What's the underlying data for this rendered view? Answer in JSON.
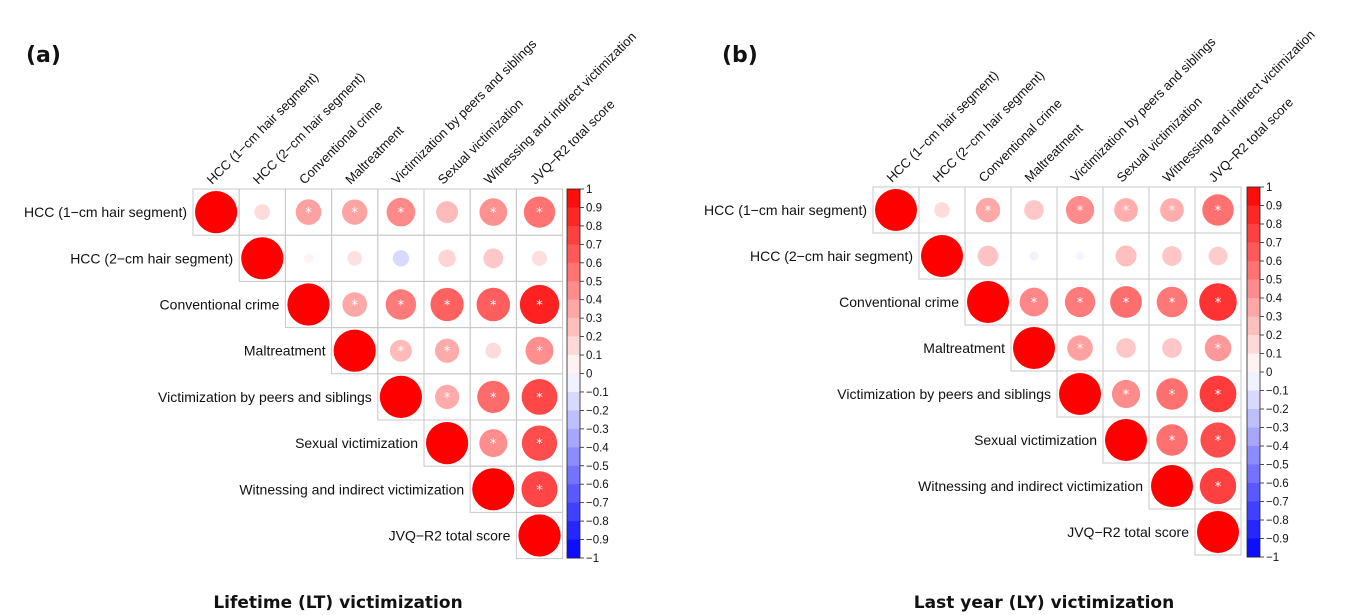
{
  "chart_data": [
    {
      "type": "heatmap",
      "panel_label": "(a)",
      "caption": "Lifetime (LT) victimization",
      "variables": [
        "HCC (1−cm hair segment)",
        "HCC (2−cm hair segment)",
        "Conventional crime",
        "Maltreatment",
        "Victimization by peers and siblings",
        "Sexual victimization",
        "Witnessing and indirect victimization",
        "JVQ−R2 total score"
      ],
      "matrix": [
        [
          1,
          0.14,
          0.37,
          0.36,
          0.46,
          0.27,
          0.43,
          0.55
        ],
        [
          null,
          1,
          0.05,
          0.12,
          -0.15,
          0.17,
          0.22,
          0.13
        ],
        [
          null,
          null,
          1,
          0.34,
          0.52,
          0.62,
          0.63,
          0.87
        ],
        [
          null,
          null,
          null,
          1,
          0.27,
          0.33,
          0.14,
          0.44
        ],
        [
          null,
          null,
          null,
          null,
          1,
          0.33,
          0.58,
          0.72
        ],
        [
          null,
          null,
          null,
          null,
          null,
          1,
          0.44,
          0.7
        ],
        [
          null,
          null,
          null,
          null,
          null,
          null,
          1,
          0.73
        ],
        [
          null,
          null,
          null,
          null,
          null,
          null,
          null,
          1
        ]
      ],
      "significant": [
        [
          false,
          false,
          true,
          true,
          true,
          false,
          true,
          true
        ],
        [
          false,
          false,
          false,
          false,
          false,
          false,
          false,
          false
        ],
        [
          false,
          false,
          false,
          true,
          true,
          true,
          true,
          true
        ],
        [
          false,
          false,
          false,
          false,
          true,
          true,
          false,
          true
        ],
        [
          false,
          false,
          false,
          false,
          false,
          true,
          true,
          true
        ],
        [
          false,
          false,
          false,
          false,
          false,
          false,
          true,
          true
        ],
        [
          false,
          false,
          false,
          false,
          false,
          false,
          false,
          true
        ],
        [
          false,
          false,
          false,
          false,
          false,
          false,
          false,
          false
        ]
      ],
      "marker_text": "*",
      "colorbar": {
        "min": -1,
        "max": 1,
        "ticks": [
          1,
          0.9,
          0.8,
          0.7,
          0.6,
          0.5,
          0.4,
          0.3,
          0.2,
          0.1,
          0,
          -0.1,
          -0.2,
          -0.3,
          -0.4,
          -0.5,
          -0.6,
          -0.7,
          -0.8,
          -0.9,
          -1
        ],
        "tick_labels": [
          "1",
          "0.9",
          "0.8",
          "0.7",
          "0.6",
          "0.5",
          "0.4",
          "0.3",
          "0.2",
          "0.1",
          "0",
          "−0.1",
          "−0.2",
          "−0.3",
          "−0.4",
          "−0.5",
          "−0.6",
          "−0.7",
          "−0.8",
          "−0.9",
          "−1"
        ]
      }
    },
    {
      "type": "heatmap",
      "panel_label": "(b)",
      "caption": "Last year (LY) victimization",
      "variables": [
        "HCC (1−cm hair segment)",
        "HCC (2−cm hair segment)",
        "Conventional crime",
        "Maltreatment",
        "Victimization by peers and siblings",
        "Sexual victimization",
        "Witnessing and indirect victimization",
        "JVQ−R2 total score"
      ],
      "matrix": [
        [
          1,
          0.14,
          0.34,
          0.22,
          0.45,
          0.32,
          0.32,
          0.56
        ],
        [
          null,
          1,
          0.24,
          -0.05,
          -0.04,
          0.25,
          0.22,
          0.2
        ],
        [
          null,
          null,
          1,
          0.47,
          0.52,
          0.57,
          0.53,
          0.8
        ],
        [
          null,
          null,
          null,
          1,
          0.37,
          0.22,
          0.22,
          0.4
        ],
        [
          null,
          null,
          null,
          null,
          1,
          0.45,
          0.56,
          0.77
        ],
        [
          null,
          null,
          null,
          null,
          null,
          1,
          0.56,
          0.7
        ],
        [
          null,
          null,
          null,
          null,
          null,
          null,
          1,
          0.75
        ],
        [
          null,
          null,
          null,
          null,
          null,
          null,
          null,
          1
        ]
      ],
      "significant": [
        [
          false,
          false,
          true,
          false,
          true,
          true,
          true,
          true
        ],
        [
          false,
          false,
          false,
          false,
          false,
          false,
          false,
          false
        ],
        [
          false,
          false,
          false,
          true,
          true,
          true,
          true,
          true
        ],
        [
          false,
          false,
          false,
          false,
          true,
          false,
          false,
          true
        ],
        [
          false,
          false,
          false,
          false,
          false,
          true,
          true,
          true
        ],
        [
          false,
          false,
          false,
          false,
          false,
          false,
          true,
          true
        ],
        [
          false,
          false,
          false,
          false,
          false,
          false,
          false,
          true
        ],
        [
          false,
          false,
          false,
          false,
          false,
          false,
          false,
          false
        ]
      ],
      "marker_text": "*",
      "colorbar": {
        "min": -1,
        "max": 1,
        "ticks": [
          1,
          0.9,
          0.8,
          0.7,
          0.6,
          0.5,
          0.4,
          0.3,
          0.2,
          0.1,
          0,
          -0.1,
          -0.2,
          -0.3,
          -0.4,
          -0.5,
          -0.6,
          -0.7,
          -0.8,
          -0.9,
          -1
        ],
        "tick_labels": [
          "1",
          "0.9",
          "0.8",
          "0.7",
          "0.6",
          "0.5",
          "0.4",
          "0.3",
          "0.2",
          "0.1",
          "0",
          "−0.1",
          "−0.2",
          "−0.3",
          "−0.4",
          "−0.5",
          "−0.6",
          "−0.7",
          "−0.8",
          "−0.9",
          "−1"
        ]
      }
    }
  ]
}
